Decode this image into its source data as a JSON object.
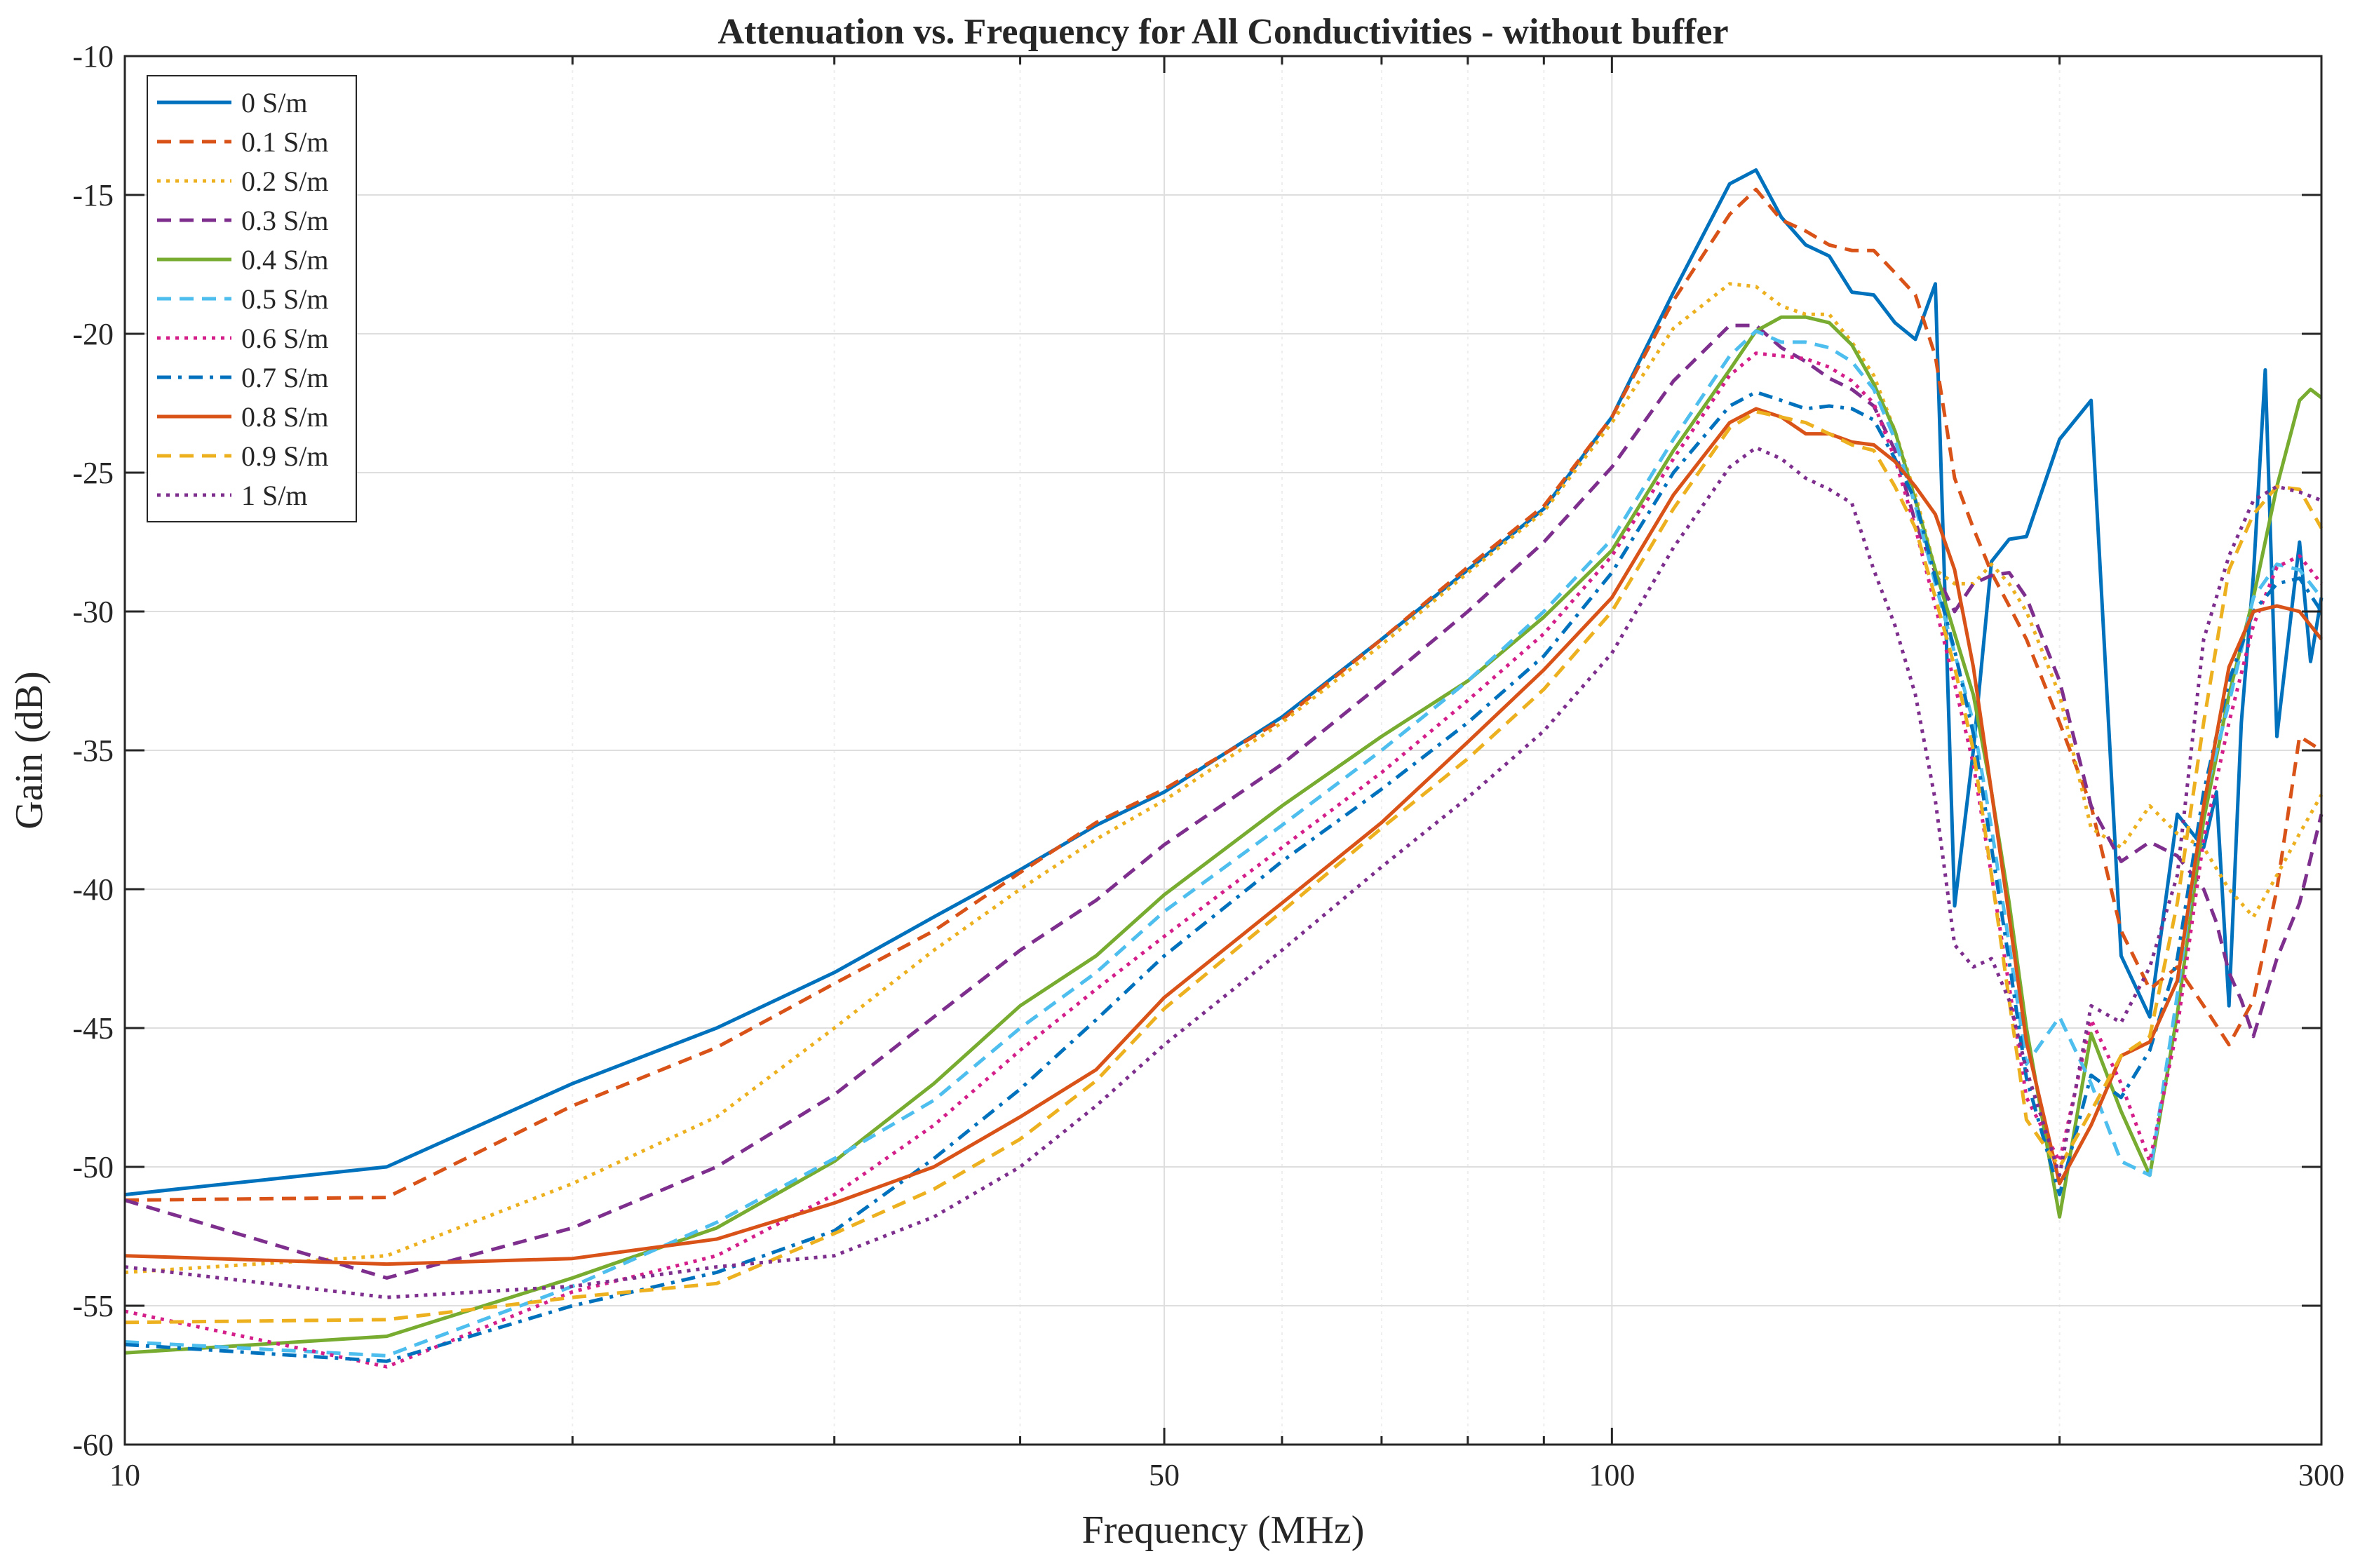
{
  "chart_data": {
    "type": "line",
    "title": "Attenuation vs. Frequency for All Conductivities - without buffer",
    "xlabel": "Frequency (MHz)",
    "ylabel": "Gain (dB)",
    "xscale": "log",
    "xlim": [
      10,
      300
    ],
    "ylim": [
      -60,
      -10
    ],
    "xticks": [
      10,
      50,
      100,
      300
    ],
    "xtick_labels": [
      "10",
      "50",
      "100",
      "300"
    ],
    "yticks": [
      -60,
      -55,
      -50,
      -45,
      -40,
      -35,
      -30,
      -25,
      -20,
      -15,
      -10
    ],
    "ytick_labels": [
      "-60",
      "-55",
      "-50",
      "-45",
      "-40",
      "-35",
      "-30",
      "-25",
      "-20",
      "-15",
      "-10"
    ],
    "grid": true,
    "legend_position": "top-left",
    "series": [
      {
        "name": "0 S/m",
        "color": "#0072BD",
        "dash": "solid",
        "x": [
          10,
          15,
          20,
          25,
          30,
          35,
          40,
          45,
          50,
          60,
          70,
          80,
          90,
          100,
          110,
          120,
          125,
          130,
          135,
          140,
          145,
          150,
          155,
          160,
          165,
          170,
          175,
          180,
          185,
          190,
          200,
          210,
          220,
          230,
          240,
          250,
          255,
          260,
          265,
          270,
          275,
          280,
          290,
          295,
          300
        ],
        "y": [
          -51,
          -50,
          -47,
          -45,
          -43,
          -41,
          -39.3,
          -37.7,
          -36.5,
          -33.8,
          -31,
          -28.5,
          -26.3,
          -23,
          -18.5,
          -14.6,
          -14.1,
          -15.8,
          -16.8,
          -17.2,
          -18.5,
          -18.6,
          -19.6,
          -20.2,
          -18.2,
          -40.6,
          -35,
          -28.2,
          -27.4,
          -27.3,
          -23.8,
          -22.4,
          -42.4,
          -44.6,
          -37.3,
          -38.5,
          -36.5,
          -44.2,
          -34,
          -28.7,
          -21.3,
          -34.5,
          -27.5,
          -31.8,
          -29.5
        ]
      },
      {
        "name": "0.1 S/m",
        "color": "#D95319",
        "dash": "dashed",
        "x": [
          10,
          15,
          20,
          25,
          30,
          35,
          40,
          45,
          50,
          60,
          70,
          80,
          90,
          100,
          110,
          120,
          125,
          130,
          135,
          140,
          145,
          150,
          155,
          160,
          165,
          170,
          175,
          180,
          185,
          190,
          200,
          210,
          220,
          230,
          240,
          250,
          260,
          270,
          280,
          290,
          300
        ],
        "y": [
          -51.2,
          -51.1,
          -47.8,
          -45.7,
          -43.4,
          -41.5,
          -39.4,
          -37.6,
          -36.4,
          -33.9,
          -31,
          -28.4,
          -26.2,
          -23,
          -18.8,
          -15.7,
          -14.8,
          -15.9,
          -16.3,
          -16.8,
          -17,
          -17,
          -17.8,
          -18.6,
          -20.8,
          -25.2,
          -27,
          -28.6,
          -29.8,
          -31,
          -34,
          -37,
          -41.5,
          -43.6,
          -42.8,
          -44.2,
          -45.6,
          -44,
          -40,
          -34.5,
          -35
        ]
      },
      {
        "name": "0.2 S/m",
        "color": "#EDB120",
        "dash": "dotted",
        "x": [
          10,
          15,
          20,
          25,
          30,
          35,
          40,
          45,
          50,
          60,
          70,
          80,
          90,
          100,
          110,
          120,
          125,
          130,
          135,
          140,
          145,
          150,
          155,
          160,
          165,
          170,
          175,
          180,
          185,
          190,
          200,
          210,
          220,
          230,
          240,
          250,
          260,
          270,
          280,
          290,
          300
        ],
        "y": [
          -53.8,
          -53.2,
          -50.6,
          -48.2,
          -45,
          -42.2,
          -40,
          -38.2,
          -36.8,
          -34,
          -31.2,
          -28.6,
          -26.4,
          -23.2,
          -19.8,
          -18.2,
          -18.3,
          -19,
          -19.3,
          -19.3,
          -20.3,
          -21.5,
          -23.5,
          -25.8,
          -28.5,
          -29,
          -29,
          -28.3,
          -29,
          -30,
          -33,
          -37.8,
          -38.5,
          -37,
          -38,
          -38.5,
          -40,
          -41,
          -39.5,
          -38,
          -36.6
        ]
      },
      {
        "name": "0.3 S/m",
        "color": "#7E2F8E",
        "dash": "dashed",
        "x": [
          10,
          15,
          20,
          25,
          30,
          35,
          40,
          45,
          50,
          60,
          70,
          80,
          90,
          100,
          110,
          120,
          125,
          130,
          135,
          140,
          145,
          150,
          155,
          160,
          165,
          170,
          175,
          180,
          185,
          190,
          200,
          210,
          220,
          230,
          240,
          250,
          255,
          260,
          265,
          270,
          280,
          290,
          300
        ],
        "y": [
          -51.2,
          -54,
          -52.2,
          -50,
          -47.4,
          -44.6,
          -42.2,
          -40.4,
          -38.4,
          -35.5,
          -32.6,
          -30,
          -27.5,
          -24.8,
          -21.7,
          -19.7,
          -19.7,
          -20.5,
          -21,
          -21.6,
          -22,
          -22.6,
          -24.2,
          -26.8,
          -28.6,
          -30,
          -29,
          -28.7,
          -28.6,
          -29.5,
          -32.5,
          -37,
          -39,
          -38.3,
          -38.8,
          -40,
          -41.2,
          -43,
          -44,
          -45.3,
          -42.5,
          -40.5,
          -37.3
        ]
      },
      {
        "name": "0.4 S/m",
        "color": "#77AC30",
        "dash": "solid",
        "x": [
          10,
          15,
          20,
          25,
          30,
          35,
          40,
          45,
          50,
          60,
          70,
          80,
          90,
          100,
          110,
          120,
          125,
          130,
          135,
          140,
          145,
          150,
          155,
          160,
          165,
          170,
          175,
          180,
          185,
          190,
          200,
          210,
          220,
          230,
          240,
          250,
          260,
          270,
          280,
          290,
          295,
          300
        ],
        "y": [
          -56.7,
          -56.1,
          -54,
          -52.2,
          -49.8,
          -47,
          -44.2,
          -42.4,
          -40.2,
          -37,
          -34.5,
          -32.5,
          -30.2,
          -27.8,
          -24.2,
          -21.3,
          -19.9,
          -19.4,
          -19.4,
          -19.6,
          -20.4,
          -21.8,
          -23.5,
          -26,
          -28.5,
          -30.8,
          -33,
          -36.5,
          -40.5,
          -45,
          -51.8,
          -45.2,
          -48,
          -50.3,
          -44.5,
          -37.5,
          -33,
          -29.5,
          -25.5,
          -22.4,
          -22,
          -22.3
        ]
      },
      {
        "name": "0.5 S/m",
        "color": "#4DBEEE",
        "dash": "dashed",
        "x": [
          10,
          15,
          20,
          25,
          30,
          35,
          40,
          45,
          50,
          60,
          70,
          80,
          90,
          100,
          110,
          120,
          125,
          130,
          135,
          140,
          145,
          150,
          155,
          160,
          165,
          170,
          175,
          180,
          185,
          190,
          200,
          210,
          220,
          230,
          240,
          250,
          260,
          270,
          280,
          290,
          300
        ],
        "y": [
          -56.3,
          -56.8,
          -54.3,
          -52,
          -49.7,
          -47.6,
          -45,
          -43,
          -40.8,
          -37.7,
          -35,
          -32.5,
          -30,
          -27.4,
          -23.8,
          -20.8,
          -19.9,
          -20.3,
          -20.3,
          -20.5,
          -21,
          -22,
          -23.8,
          -26.2,
          -29,
          -31.5,
          -34,
          -37.8,
          -42,
          -46.3,
          -44.6,
          -47,
          -49.8,
          -50.3,
          -43.8,
          -36.8,
          -33.3,
          -29.5,
          -28.3,
          -28.5,
          -29.5
        ]
      },
      {
        "name": "0.6 S/m",
        "color": "#D41E8A",
        "dash": "dotted",
        "x": [
          10,
          15,
          20,
          25,
          30,
          35,
          40,
          45,
          50,
          60,
          70,
          80,
          90,
          100,
          110,
          120,
          125,
          130,
          135,
          140,
          145,
          150,
          155,
          160,
          165,
          170,
          175,
          180,
          185,
          190,
          200,
          210,
          220,
          230,
          240,
          250,
          260,
          270,
          280,
          290,
          300
        ],
        "y": [
          -55.2,
          -57.2,
          -54.5,
          -53.2,
          -51,
          -48.5,
          -45.8,
          -43.6,
          -41.7,
          -38.5,
          -35.8,
          -33.2,
          -30.8,
          -28,
          -24.5,
          -21.5,
          -20.7,
          -20.8,
          -20.9,
          -21.2,
          -21.7,
          -22.5,
          -24.5,
          -27,
          -29.8,
          -32.6,
          -35.5,
          -39.5,
          -43.5,
          -47.5,
          -49.8,
          -44.7,
          -47,
          -49.8,
          -45,
          -38.2,
          -34,
          -30.5,
          -28.4,
          -28,
          -29
        ]
      },
      {
        "name": "0.7 S/m",
        "color": "#0072BD",
        "dash": "dashdot",
        "x": [
          10,
          15,
          20,
          25,
          30,
          35,
          40,
          45,
          50,
          60,
          70,
          80,
          90,
          100,
          110,
          120,
          125,
          130,
          135,
          140,
          145,
          150,
          155,
          160,
          165,
          170,
          175,
          180,
          185,
          190,
          200,
          210,
          220,
          230,
          240,
          250,
          260,
          270,
          280,
          290,
          300
        ],
        "y": [
          -56.4,
          -57,
          -55,
          -53.8,
          -52.3,
          -49.7,
          -47.2,
          -44.7,
          -42.4,
          -39,
          -36.4,
          -34,
          -31.6,
          -28.6,
          -25,
          -22.6,
          -22.1,
          -22.4,
          -22.7,
          -22.6,
          -22.7,
          -23.1,
          -24.5,
          -26,
          -28.8,
          -31.4,
          -34.4,
          -38.5,
          -42.6,
          -46.8,
          -51,
          -46.7,
          -47.5,
          -45.8,
          -42.5,
          -36.5,
          -32.5,
          -30,
          -29,
          -28.8,
          -30
        ]
      },
      {
        "name": "0.8 S/m",
        "color": "#D95319",
        "dash": "solid",
        "x": [
          10,
          15,
          20,
          25,
          30,
          35,
          40,
          45,
          50,
          60,
          70,
          80,
          90,
          100,
          110,
          120,
          125,
          130,
          135,
          140,
          145,
          150,
          155,
          160,
          165,
          170,
          175,
          180,
          185,
          190,
          200,
          210,
          220,
          230,
          240,
          250,
          260,
          270,
          280,
          290,
          300
        ],
        "y": [
          -53.2,
          -53.5,
          -53.3,
          -52.6,
          -51.3,
          -50,
          -48.2,
          -46.5,
          -43.9,
          -40.5,
          -37.6,
          -34.7,
          -32.1,
          -29.5,
          -25.8,
          -23.2,
          -22.7,
          -23,
          -23.6,
          -23.6,
          -23.9,
          -24,
          -24.6,
          -25.5,
          -26.5,
          -28.5,
          -32,
          -36.5,
          -41,
          -45.5,
          -50.6,
          -48.5,
          -46,
          -45.5,
          -43.3,
          -37,
          -32,
          -30,
          -29.8,
          -30,
          -31
        ]
      },
      {
        "name": "0.9 S/m",
        "color": "#EDB120",
        "dash": "dashed",
        "x": [
          10,
          15,
          20,
          25,
          30,
          35,
          40,
          45,
          50,
          60,
          70,
          80,
          90,
          100,
          110,
          120,
          125,
          130,
          135,
          140,
          145,
          150,
          155,
          160,
          165,
          170,
          175,
          180,
          185,
          190,
          200,
          210,
          220,
          230,
          240,
          250,
          260,
          270,
          280,
          290,
          300
        ],
        "y": [
          -55.6,
          -55.5,
          -54.7,
          -54.2,
          -52.4,
          -50.8,
          -49,
          -46.9,
          -44.3,
          -40.8,
          -37.8,
          -35.3,
          -32.8,
          -30,
          -26.3,
          -23.4,
          -22.8,
          -23,
          -23.2,
          -23.6,
          -24,
          -24.2,
          -25.5,
          -27,
          -29.5,
          -32,
          -35,
          -39.5,
          -44,
          -48.3,
          -50,
          -48,
          -46,
          -45.3,
          -40.5,
          -34,
          -28.5,
          -26.5,
          -25.5,
          -25.6,
          -27
        ]
      },
      {
        "name": "1 S/m",
        "color": "#7E2F8E",
        "dash": "dotted",
        "x": [
          10,
          15,
          20,
          25,
          30,
          35,
          40,
          45,
          50,
          60,
          70,
          80,
          90,
          100,
          110,
          120,
          125,
          130,
          135,
          140,
          145,
          150,
          155,
          160,
          165,
          170,
          175,
          180,
          185,
          190,
          200,
          210,
          220,
          230,
          240,
          250,
          260,
          270,
          280,
          290,
          300
        ],
        "y": [
          -53.6,
          -54.7,
          -54.3,
          -53.6,
          -53.2,
          -51.8,
          -50,
          -47.8,
          -45.6,
          -42.2,
          -39.2,
          -36.7,
          -34.3,
          -31.5,
          -27.7,
          -24.8,
          -24.1,
          -24.5,
          -25.2,
          -25.6,
          -26.1,
          -28.5,
          -30.5,
          -33,
          -36.8,
          -42,
          -42.8,
          -42.5,
          -44,
          -46.5,
          -50.3,
          -44.2,
          -44.8,
          -42.8,
          -39.5,
          -31,
          -28,
          -26,
          -25.5,
          -25.7,
          -26
        ]
      }
    ]
  }
}
